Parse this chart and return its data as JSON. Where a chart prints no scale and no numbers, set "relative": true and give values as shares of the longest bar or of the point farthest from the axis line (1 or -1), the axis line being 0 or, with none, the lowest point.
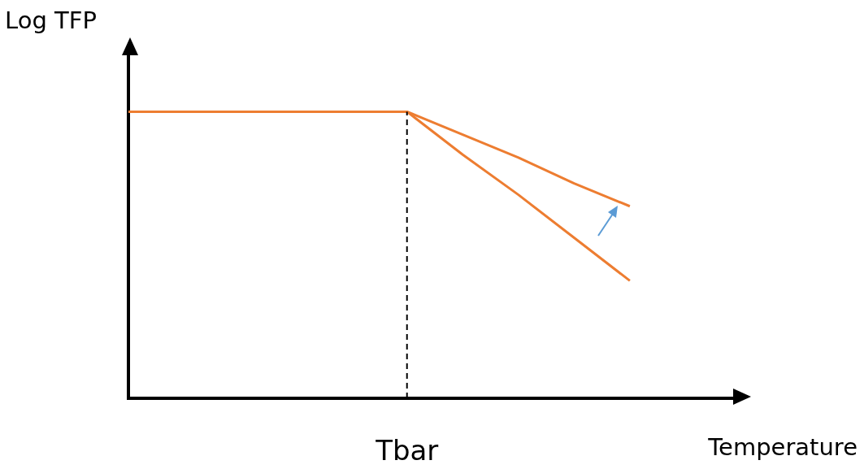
{
  "chart_data": {
    "type": "line",
    "xlabel": "Temperature",
    "ylabel": "Log TFP",
    "relative": true,
    "categories": [
      null,
      null,
      null,
      null,
      null,
      null,
      null,
      null,
      null,
      null,
      null,
      null
    ],
    "series": [
      {
        "color": "#ed7d31",
        "values": [
          1,
          1,
          1,
          1,
          1,
          1,
          0.92,
          0.84,
          0.75,
          0.67,
          null,
          null
        ]
      },
      {
        "color": "#ed7d31",
        "values": [
          null,
          null,
          null,
          null,
          null,
          1,
          0.85,
          0.71,
          0.56,
          0.41,
          null,
          null
        ]
      }
    ],
    "annotations": [
      "Tbar"
    ]
  }
}
